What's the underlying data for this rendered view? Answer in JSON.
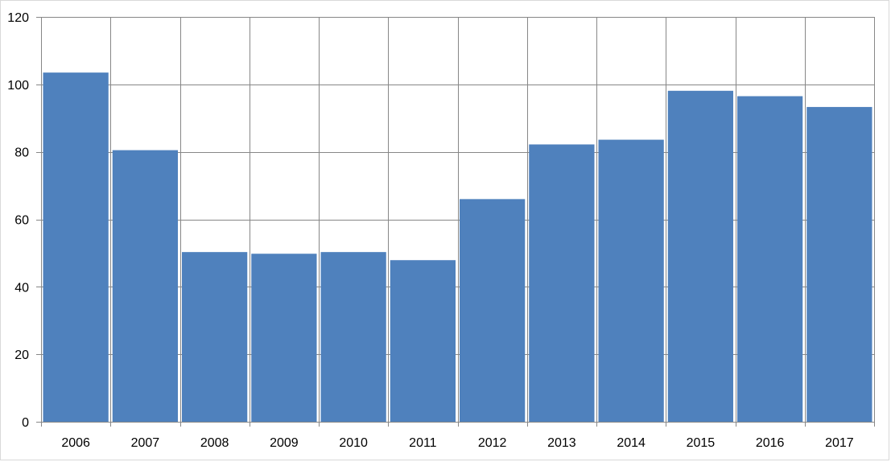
{
  "chart_data": {
    "type": "bar",
    "title": "",
    "xlabel": "",
    "ylabel": "",
    "categories": [
      "2006",
      "2007",
      "2008",
      "2009",
      "2010",
      "2011",
      "2012",
      "2013",
      "2014",
      "2015",
      "2016",
      "2017"
    ],
    "values": [
      103.5,
      80.5,
      50.3,
      49.8,
      50.3,
      47.9,
      66.0,
      82.2,
      83.6,
      98.1,
      96.5,
      93.3
    ],
    "ylim": [
      0,
      120
    ],
    "yticks": [
      0,
      20,
      40,
      60,
      80,
      100,
      120
    ],
    "ytick_labels": [
      "0",
      "20",
      "40",
      "60",
      "80",
      "100",
      "120"
    ],
    "grid": {
      "horizontal": true,
      "vertical": true
    },
    "legend": "none",
    "colors": {
      "bar": "#4f81bd",
      "grid": "#878787",
      "axis": "#878787",
      "background": "#ffffff"
    }
  }
}
